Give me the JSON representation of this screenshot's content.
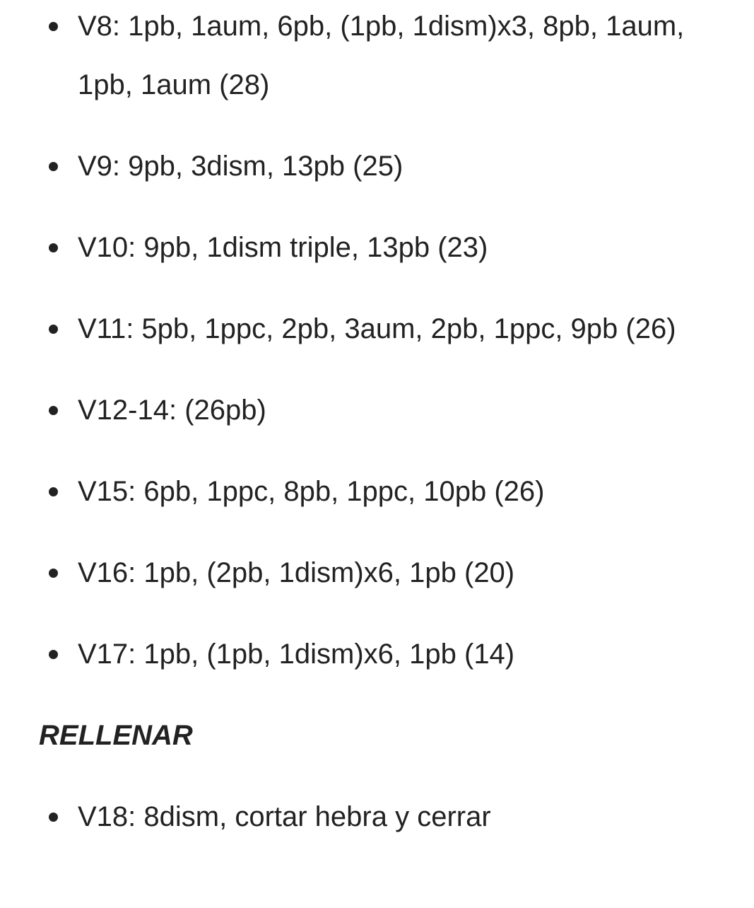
{
  "list_1": [
    "V8: 1pb, 1aum, 6pb, (1pb, 1dism)x3, 8pb, 1aum, 1pb, 1aum (28)",
    "V9: 9pb, 3dism, 13pb (25)",
    "V10: 9pb, 1dism triple, 13pb (23)",
    "V11: 5pb, 1ppc, 2pb, 3aum, 2pb, 1ppc, 9pb (26)",
    "V12-14: (26pb)",
    "V15: 6pb, 1ppc, 8pb, 1ppc, 10pb (26)",
    "V16: 1pb, (2pb, 1dism)x6, 1pb (20)",
    "V17: 1pb, (1pb, 1dism)x6, 1pb (14)"
  ],
  "heading": "RELLENAR",
  "list_2": [
    "V18: 8dism, cortar hebra y cerrar"
  ]
}
